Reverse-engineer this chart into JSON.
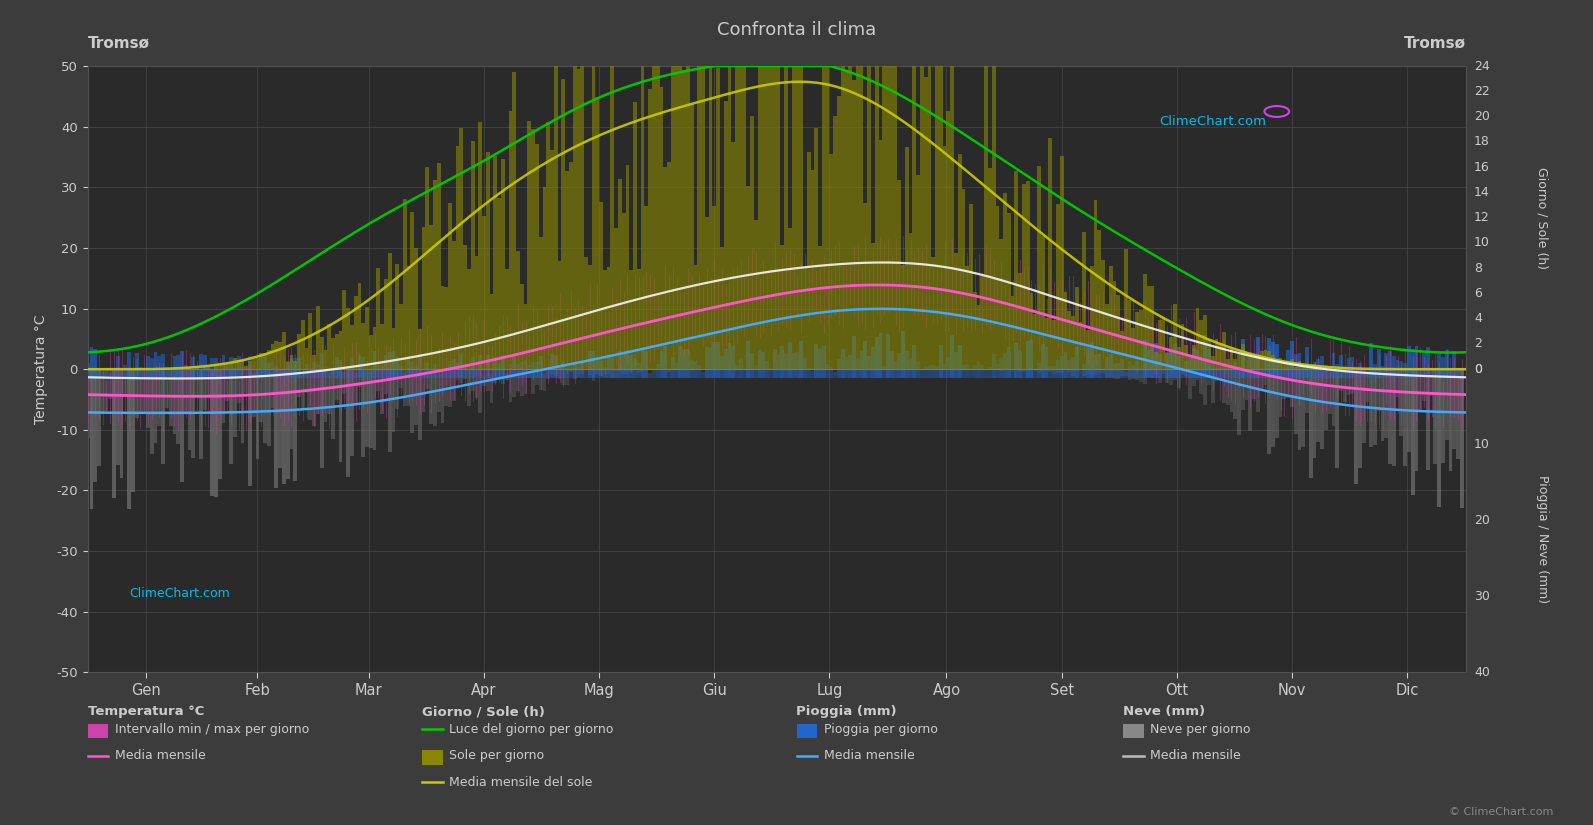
{
  "title": "Confronta il clima",
  "city_left": "Tromsø",
  "city_right": "Tromsø",
  "months": [
    "Gen",
    "Feb",
    "Mar",
    "Apr",
    "Mag",
    "Giu",
    "Lug",
    "Ago",
    "Set",
    "Ott",
    "Nov",
    "Dic"
  ],
  "background_color": "#3c3c3c",
  "plot_bg_color": "#2a2a2a",
  "text_color": "#cccccc",
  "grid_color": "#505050",
  "temp_mean_monthly": [
    -4.4,
    -4.2,
    -2.2,
    1.2,
    5.8,
    10.2,
    13.5,
    13.0,
    8.2,
    2.8,
    -1.8,
    -3.8
  ],
  "temp_min_monthly": [
    -7.2,
    -7.0,
    -5.5,
    -2.0,
    1.8,
    6.0,
    9.5,
    9.2,
    5.0,
    0.2,
    -4.5,
    -6.8
  ],
  "temp_max_monthly": [
    -1.5,
    -1.2,
    0.8,
    4.5,
    9.8,
    14.5,
    17.2,
    16.8,
    11.5,
    5.5,
    0.8,
    -1.0
  ],
  "sun_hours_monthly": [
    0.0,
    1.0,
    5.5,
    13.0,
    18.5,
    21.5,
    22.5,
    17.0,
    9.5,
    3.5,
    0.5,
    0.0
  ],
  "daylight_hours_monthly": [
    2.0,
    6.0,
    11.5,
    16.5,
    21.5,
    24.0,
    24.0,
    19.5,
    13.5,
    8.0,
    3.5,
    1.5
  ],
  "rain_daily_mean_monthly": [
    1.5,
    1.2,
    1.4,
    1.2,
    1.4,
    1.8,
    2.2,
    2.4,
    2.0,
    2.2,
    2.0,
    1.7
  ],
  "snow_daily_mean_monthly": [
    2.5,
    2.2,
    1.8,
    0.8,
    0.2,
    0.0,
    0.0,
    0.0,
    0.1,
    0.5,
    1.8,
    2.5
  ],
  "temp_bar_color": "#cc44aa",
  "temp_mean_color": "#ff55cc",
  "temp_min_color": "#44aaff",
  "temp_max_color": "#ffffff",
  "sun_bar_color": "#888800",
  "sun_mean_color": "#cccc00",
  "daylight_color": "#00cc00",
  "rain_bar_color": "#2266cc",
  "rain_mean_color": "#44aaff",
  "snow_bar_color": "#888888",
  "snow_mean_color": "#bbbbbb"
}
